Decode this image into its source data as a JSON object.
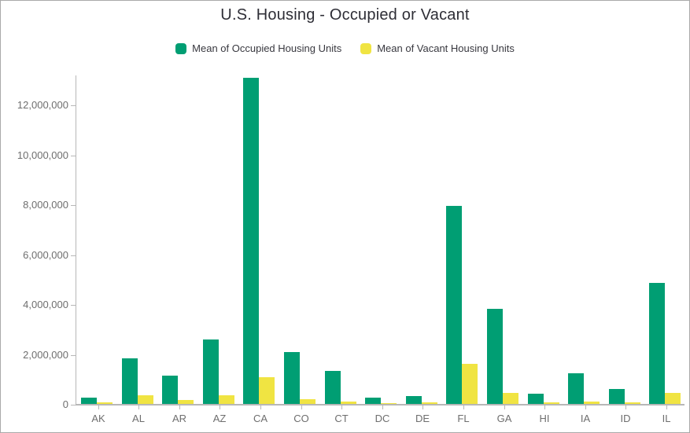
{
  "chart_data": {
    "type": "bar",
    "title": "U.S. Housing - Occupied or Vacant",
    "xlabel": "",
    "ylabel": "",
    "categories": [
      "AK",
      "AL",
      "AR",
      "AZ",
      "CA",
      "CO",
      "CT",
      "DC",
      "DE",
      "FL",
      "GA",
      "HI",
      "IA",
      "ID",
      "IL"
    ],
    "series": [
      {
        "name": "Mean of Occupied Housing Units",
        "color": "#009E73",
        "values": [
          250000,
          1840000,
          1140000,
          2600000,
          13100000,
          2080000,
          1330000,
          250000,
          330000,
          7950000,
          3820000,
          420000,
          1230000,
          600000,
          4850000
        ]
      },
      {
        "name": "Mean of Vacant Housing Units",
        "color": "#F0E442",
        "values": [
          60000,
          340000,
          170000,
          360000,
          1070000,
          190000,
          100000,
          30000,
          50000,
          1600000,
          450000,
          60000,
          100000,
          60000,
          450000
        ]
      }
    ],
    "ylim": [
      0,
      13200000
    ],
    "yticks": [
      0,
      2000000,
      4000000,
      6000000,
      8000000,
      10000000,
      12000000
    ],
    "ytick_labels": [
      "0",
      "2,000,000",
      "4,000,000",
      "6,000,000",
      "8,000,000",
      "10,000,000",
      "12,000,000"
    ],
    "legend_position": "top",
    "grid": false
  },
  "colors": {
    "occupied": "#009E73",
    "vacant": "#F0E442",
    "axis_line": "#b7b7b7",
    "axis_text": "#6e6e6e",
    "title_text": "#2e2e36",
    "legend_text": "#38383f",
    "border": "#a9a9a9",
    "background": "#ffffff"
  }
}
